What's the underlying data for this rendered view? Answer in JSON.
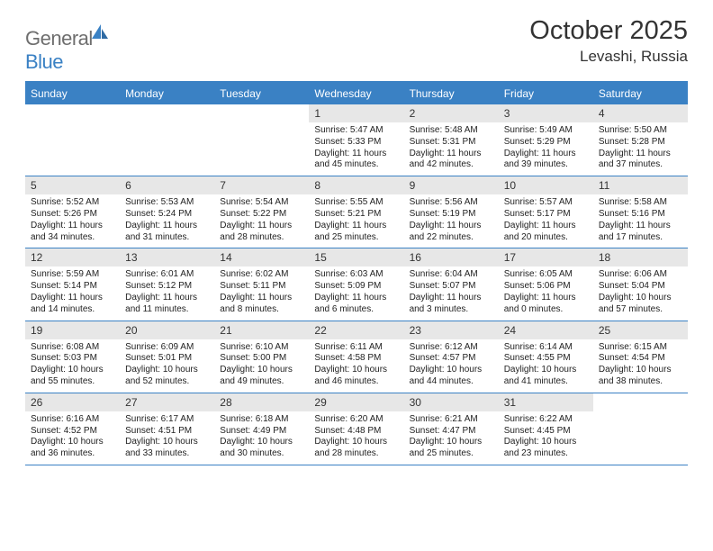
{
  "brand": {
    "name_gray": "General",
    "name_blue": "Blue"
  },
  "header": {
    "month_title": "October 2025",
    "location": "Levashi, Russia"
  },
  "colors": {
    "accent": "#3a81c4",
    "daynum_bg": "#e7e7e7",
    "text": "#333333",
    "body_text": "#222222",
    "header_text": "#ffffff",
    "logo_gray": "#6e6e6e"
  },
  "day_names": [
    "Sunday",
    "Monday",
    "Tuesday",
    "Wednesday",
    "Thursday",
    "Friday",
    "Saturday"
  ],
  "weeks": [
    [
      {
        "empty": true
      },
      {
        "empty": true
      },
      {
        "empty": true
      },
      {
        "day": "1",
        "sunrise": "Sunrise: 5:47 AM",
        "sunset": "Sunset: 5:33 PM",
        "daylight": "Daylight: 11 hours and 45 minutes."
      },
      {
        "day": "2",
        "sunrise": "Sunrise: 5:48 AM",
        "sunset": "Sunset: 5:31 PM",
        "daylight": "Daylight: 11 hours and 42 minutes."
      },
      {
        "day": "3",
        "sunrise": "Sunrise: 5:49 AM",
        "sunset": "Sunset: 5:29 PM",
        "daylight": "Daylight: 11 hours and 39 minutes."
      },
      {
        "day": "4",
        "sunrise": "Sunrise: 5:50 AM",
        "sunset": "Sunset: 5:28 PM",
        "daylight": "Daylight: 11 hours and 37 minutes."
      }
    ],
    [
      {
        "day": "5",
        "sunrise": "Sunrise: 5:52 AM",
        "sunset": "Sunset: 5:26 PM",
        "daylight": "Daylight: 11 hours and 34 minutes."
      },
      {
        "day": "6",
        "sunrise": "Sunrise: 5:53 AM",
        "sunset": "Sunset: 5:24 PM",
        "daylight": "Daylight: 11 hours and 31 minutes."
      },
      {
        "day": "7",
        "sunrise": "Sunrise: 5:54 AM",
        "sunset": "Sunset: 5:22 PM",
        "daylight": "Daylight: 11 hours and 28 minutes."
      },
      {
        "day": "8",
        "sunrise": "Sunrise: 5:55 AM",
        "sunset": "Sunset: 5:21 PM",
        "daylight": "Daylight: 11 hours and 25 minutes."
      },
      {
        "day": "9",
        "sunrise": "Sunrise: 5:56 AM",
        "sunset": "Sunset: 5:19 PM",
        "daylight": "Daylight: 11 hours and 22 minutes."
      },
      {
        "day": "10",
        "sunrise": "Sunrise: 5:57 AM",
        "sunset": "Sunset: 5:17 PM",
        "daylight": "Daylight: 11 hours and 20 minutes."
      },
      {
        "day": "11",
        "sunrise": "Sunrise: 5:58 AM",
        "sunset": "Sunset: 5:16 PM",
        "daylight": "Daylight: 11 hours and 17 minutes."
      }
    ],
    [
      {
        "day": "12",
        "sunrise": "Sunrise: 5:59 AM",
        "sunset": "Sunset: 5:14 PM",
        "daylight": "Daylight: 11 hours and 14 minutes."
      },
      {
        "day": "13",
        "sunrise": "Sunrise: 6:01 AM",
        "sunset": "Sunset: 5:12 PM",
        "daylight": "Daylight: 11 hours and 11 minutes."
      },
      {
        "day": "14",
        "sunrise": "Sunrise: 6:02 AM",
        "sunset": "Sunset: 5:11 PM",
        "daylight": "Daylight: 11 hours and 8 minutes."
      },
      {
        "day": "15",
        "sunrise": "Sunrise: 6:03 AM",
        "sunset": "Sunset: 5:09 PM",
        "daylight": "Daylight: 11 hours and 6 minutes."
      },
      {
        "day": "16",
        "sunrise": "Sunrise: 6:04 AM",
        "sunset": "Sunset: 5:07 PM",
        "daylight": "Daylight: 11 hours and 3 minutes."
      },
      {
        "day": "17",
        "sunrise": "Sunrise: 6:05 AM",
        "sunset": "Sunset: 5:06 PM",
        "daylight": "Daylight: 11 hours and 0 minutes."
      },
      {
        "day": "18",
        "sunrise": "Sunrise: 6:06 AM",
        "sunset": "Sunset: 5:04 PM",
        "daylight": "Daylight: 10 hours and 57 minutes."
      }
    ],
    [
      {
        "day": "19",
        "sunrise": "Sunrise: 6:08 AM",
        "sunset": "Sunset: 5:03 PM",
        "daylight": "Daylight: 10 hours and 55 minutes."
      },
      {
        "day": "20",
        "sunrise": "Sunrise: 6:09 AM",
        "sunset": "Sunset: 5:01 PM",
        "daylight": "Daylight: 10 hours and 52 minutes."
      },
      {
        "day": "21",
        "sunrise": "Sunrise: 6:10 AM",
        "sunset": "Sunset: 5:00 PM",
        "daylight": "Daylight: 10 hours and 49 minutes."
      },
      {
        "day": "22",
        "sunrise": "Sunrise: 6:11 AM",
        "sunset": "Sunset: 4:58 PM",
        "daylight": "Daylight: 10 hours and 46 minutes."
      },
      {
        "day": "23",
        "sunrise": "Sunrise: 6:12 AM",
        "sunset": "Sunset: 4:57 PM",
        "daylight": "Daylight: 10 hours and 44 minutes."
      },
      {
        "day": "24",
        "sunrise": "Sunrise: 6:14 AM",
        "sunset": "Sunset: 4:55 PM",
        "daylight": "Daylight: 10 hours and 41 minutes."
      },
      {
        "day": "25",
        "sunrise": "Sunrise: 6:15 AM",
        "sunset": "Sunset: 4:54 PM",
        "daylight": "Daylight: 10 hours and 38 minutes."
      }
    ],
    [
      {
        "day": "26",
        "sunrise": "Sunrise: 6:16 AM",
        "sunset": "Sunset: 4:52 PM",
        "daylight": "Daylight: 10 hours and 36 minutes."
      },
      {
        "day": "27",
        "sunrise": "Sunrise: 6:17 AM",
        "sunset": "Sunset: 4:51 PM",
        "daylight": "Daylight: 10 hours and 33 minutes."
      },
      {
        "day": "28",
        "sunrise": "Sunrise: 6:18 AM",
        "sunset": "Sunset: 4:49 PM",
        "daylight": "Daylight: 10 hours and 30 minutes."
      },
      {
        "day": "29",
        "sunrise": "Sunrise: 6:20 AM",
        "sunset": "Sunset: 4:48 PM",
        "daylight": "Daylight: 10 hours and 28 minutes."
      },
      {
        "day": "30",
        "sunrise": "Sunrise: 6:21 AM",
        "sunset": "Sunset: 4:47 PM",
        "daylight": "Daylight: 10 hours and 25 minutes."
      },
      {
        "day": "31",
        "sunrise": "Sunrise: 6:22 AM",
        "sunset": "Sunset: 4:45 PM",
        "daylight": "Daylight: 10 hours and 23 minutes."
      },
      {
        "empty": true
      }
    ]
  ]
}
